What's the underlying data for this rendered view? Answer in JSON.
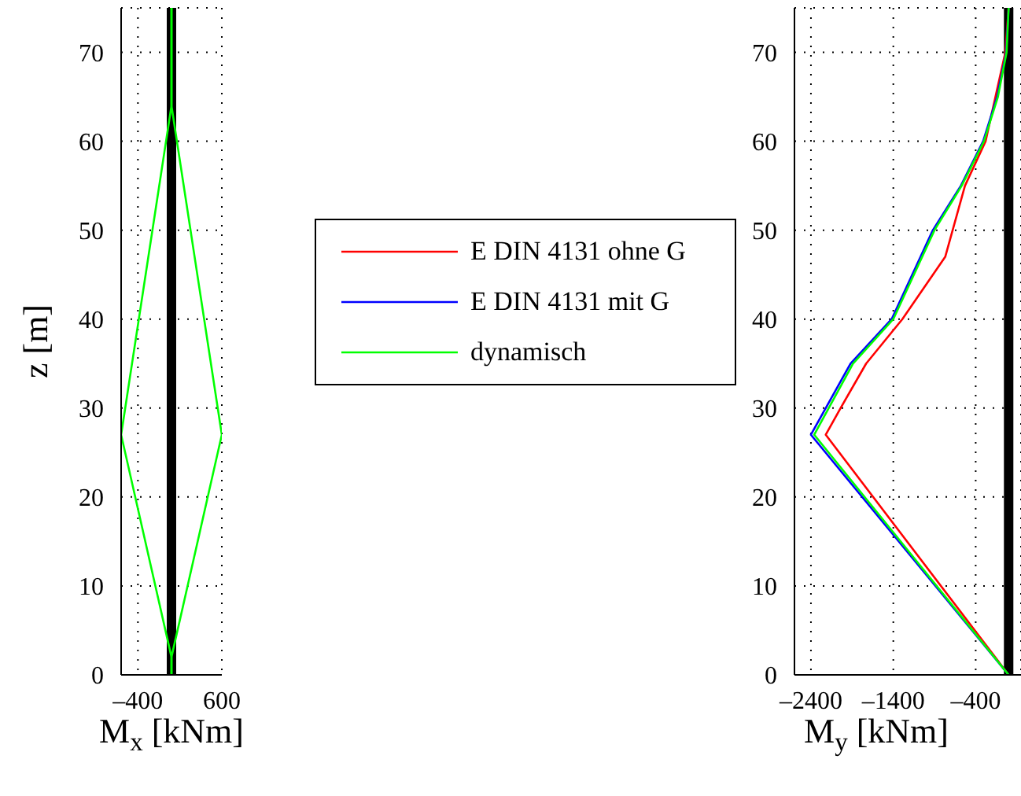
{
  "chart_data": [
    {
      "type": "line",
      "xlabel": "M$_{x}$ [kNm]",
      "ylabel": "z [m]",
      "xlim": [
        -600,
        600
      ],
      "xticks": [
        {
          "value": -400,
          "label": "–400"
        },
        600
      ],
      "ylim": [
        0,
        75
      ],
      "yticks": [
        0,
        10,
        20,
        30,
        40,
        50,
        60,
        70
      ],
      "grid": true,
      "legend": false,
      "marker": "none",
      "line_style": "solid",
      "series": [
        {
          "color": "#000000",
          "x": [
            0,
            0
          ],
          "values": [
            0,
            75
          ]
        },
        {
          "color": "#00ff00",
          "x": [
            0,
            0,
            -600,
            0,
            0
          ],
          "values": [
            0,
            2,
            27,
            64,
            75
          ]
        },
        {
          "color": "#00ff00",
          "x": [
            0,
            0,
            600,
            0,
            0
          ],
          "values": [
            0,
            2,
            27,
            64,
            75
          ]
        }
      ]
    },
    {
      "type": "line",
      "xlabel": "M$_{y}$ [kNm]",
      "xlim": [
        -2600,
        150
      ],
      "xticks": [
        {
          "value": -2400,
          "label": "–2400"
        },
        {
          "value": -1400,
          "label": "–1400"
        },
        {
          "value": -400,
          "label": "–400"
        }
      ],
      "ylim": [
        0,
        75
      ],
      "yticks": [
        0,
        10,
        20,
        30,
        40,
        50,
        60,
        70
      ],
      "grid": true,
      "legend": "left",
      "marker": "none",
      "line_style": "solid",
      "series": [
        {
          "color": "#000000",
          "x": [
            0,
            0
          ],
          "values": [
            0,
            75
          ]
        },
        {
          "name": "E DIN 4131 ohne G",
          "color": "#ff0000",
          "x": [
            0,
            -2220,
            -2040,
            -1730,
            -1290,
            -770,
            -530,
            -280,
            -40,
            0
          ],
          "values": [
            0,
            27,
            30,
            35,
            40,
            47,
            55,
            60,
            70,
            75
          ]
        },
        {
          "name": "E DIN 4131 mit G",
          "color": "#0000ff",
          "x": [
            0,
            -2400,
            -1920,
            -1420,
            -920,
            -580,
            -310,
            -140,
            -30,
            0
          ],
          "values": [
            0,
            27,
            35,
            40,
            50,
            55,
            60,
            65,
            70,
            75
          ]
        },
        {
          "name": "dynamisch",
          "color": "#00ff00",
          "x": [
            0,
            -2360,
            -1890,
            -1400,
            -900,
            -570,
            -300,
            -130,
            -25,
            0
          ],
          "values": [
            0,
            27,
            35,
            40,
            50,
            55,
            60,
            65,
            70,
            75
          ]
        }
      ]
    }
  ]
}
